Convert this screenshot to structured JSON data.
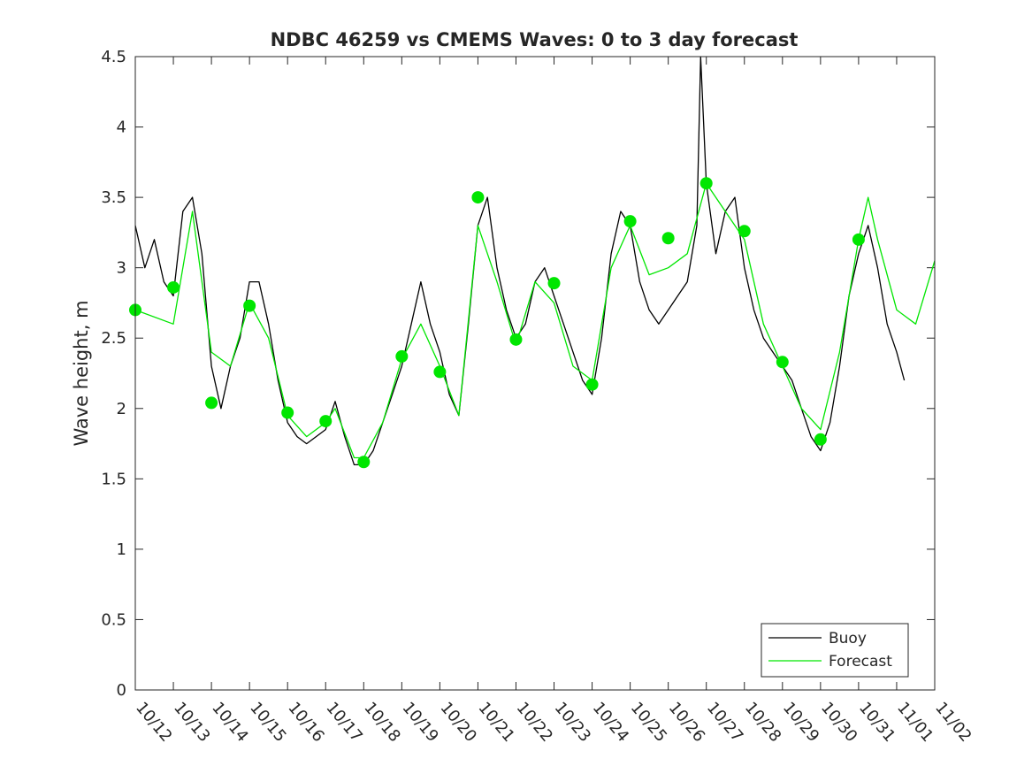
{
  "chart_data": {
    "type": "line",
    "title": "NDBC 46259 vs CMEMS Waves: 0 to 3 day forecast",
    "xlabel": "",
    "ylabel": "Wave height, m",
    "xlim": [
      0,
      21
    ],
    "ylim": [
      0,
      4.5
    ],
    "grid": false,
    "legend_location": "bottom-right",
    "x_tick_labels": [
      "10/12",
      "10/13",
      "10/14",
      "10/15",
      "10/16",
      "10/17",
      "10/18",
      "10/19",
      "10/20",
      "10/21",
      "10/22",
      "10/23",
      "10/24",
      "10/25",
      "10/26",
      "10/27",
      "10/28",
      "10/29",
      "10/30",
      "10/31",
      "11/01",
      "11/02"
    ],
    "y_ticks": [
      0,
      0.5,
      1,
      1.5,
      2,
      2.5,
      3,
      3.5,
      4,
      4.5
    ],
    "y_tick_labels": [
      "0",
      "0.5",
      "1",
      "1.5",
      "2",
      "2.5",
      "3",
      "3.5",
      "4",
      "4.5"
    ],
    "legend": [
      {
        "label": "Buoy",
        "color": "#000000"
      },
      {
        "label": "Forecast",
        "color": "#00e600"
      }
    ],
    "colors": {
      "buoy": "#000000",
      "forecast": "#00e600",
      "marker": "#00e600"
    },
    "series": [
      {
        "name": "Buoy",
        "points": [
          [
            0,
            3.3
          ],
          [
            0.25,
            3.0
          ],
          [
            0.5,
            3.2
          ],
          [
            0.75,
            2.9
          ],
          [
            1.0,
            2.8
          ],
          [
            1.25,
            3.4
          ],
          [
            1.5,
            3.5
          ],
          [
            1.75,
            3.1
          ],
          [
            2.0,
            2.3
          ],
          [
            2.25,
            2.0
          ],
          [
            2.5,
            2.3
          ],
          [
            2.75,
            2.5
          ],
          [
            3.0,
            2.9
          ],
          [
            3.25,
            2.9
          ],
          [
            3.5,
            2.6
          ],
          [
            3.75,
            2.2
          ],
          [
            4.0,
            1.9
          ],
          [
            4.25,
            1.8
          ],
          [
            4.5,
            1.75
          ],
          [
            4.75,
            1.8
          ],
          [
            5.0,
            1.85
          ],
          [
            5.25,
            2.05
          ],
          [
            5.5,
            1.8
          ],
          [
            5.75,
            1.6
          ],
          [
            6.0,
            1.6
          ],
          [
            6.25,
            1.7
          ],
          [
            6.5,
            1.9
          ],
          [
            6.75,
            2.1
          ],
          [
            7.0,
            2.3
          ],
          [
            7.25,
            2.6
          ],
          [
            7.5,
            2.9
          ],
          [
            7.75,
            2.6
          ],
          [
            8.0,
            2.4
          ],
          [
            8.25,
            2.1
          ],
          [
            8.5,
            1.95
          ],
          [
            8.75,
            2.6
          ],
          [
            9.0,
            3.3
          ],
          [
            9.25,
            3.5
          ],
          [
            9.5,
            3.0
          ],
          [
            9.75,
            2.7
          ],
          [
            10.0,
            2.5
          ],
          [
            10.25,
            2.6
          ],
          [
            10.5,
            2.9
          ],
          [
            10.75,
            3.0
          ],
          [
            11.0,
            2.8
          ],
          [
            11.25,
            2.6
          ],
          [
            11.5,
            2.4
          ],
          [
            11.75,
            2.2
          ],
          [
            12.0,
            2.1
          ],
          [
            12.25,
            2.5
          ],
          [
            12.5,
            3.1
          ],
          [
            12.75,
            3.4
          ],
          [
            13.0,
            3.3
          ],
          [
            13.25,
            2.9
          ],
          [
            13.5,
            2.7
          ],
          [
            13.75,
            2.6
          ],
          [
            14.0,
            2.7
          ],
          [
            14.25,
            2.8
          ],
          [
            14.5,
            2.9
          ],
          [
            14.75,
            3.3
          ],
          [
            14.85,
            4.5
          ],
          [
            15.0,
            3.6
          ],
          [
            15.25,
            3.1
          ],
          [
            15.5,
            3.4
          ],
          [
            15.75,
            3.5
          ],
          [
            16.0,
            3.0
          ],
          [
            16.25,
            2.7
          ],
          [
            16.5,
            2.5
          ],
          [
            16.75,
            2.4
          ],
          [
            17.0,
            2.3
          ],
          [
            17.25,
            2.2
          ],
          [
            17.5,
            2.0
          ],
          [
            17.75,
            1.8
          ],
          [
            18.0,
            1.7
          ],
          [
            18.25,
            1.9
          ],
          [
            18.5,
            2.3
          ],
          [
            18.75,
            2.8
          ],
          [
            19.0,
            3.1
          ],
          [
            19.25,
            3.3
          ],
          [
            19.5,
            3.0
          ],
          [
            19.75,
            2.6
          ],
          [
            20.0,
            2.4
          ],
          [
            20.2,
            2.2
          ]
        ]
      },
      {
        "name": "Forecast",
        "points": [
          [
            0,
            2.7
          ],
          [
            1.0,
            2.6
          ],
          [
            1.5,
            3.4
          ],
          [
            2.0,
            2.4
          ],
          [
            2.5,
            2.3
          ],
          [
            3.0,
            2.75
          ],
          [
            3.5,
            2.5
          ],
          [
            4.0,
            1.95
          ],
          [
            4.5,
            1.8
          ],
          [
            5.0,
            1.9
          ],
          [
            5.25,
            2.0
          ],
          [
            5.75,
            1.65
          ],
          [
            6.0,
            1.65
          ],
          [
            6.5,
            1.9
          ],
          [
            7.0,
            2.35
          ],
          [
            7.5,
            2.6
          ],
          [
            8.0,
            2.3
          ],
          [
            8.5,
            1.95
          ],
          [
            9.0,
            3.3
          ],
          [
            9.5,
            2.9
          ],
          [
            10.0,
            2.45
          ],
          [
            10.5,
            2.9
          ],
          [
            11.0,
            2.75
          ],
          [
            11.5,
            2.3
          ],
          [
            12.0,
            2.2
          ],
          [
            12.5,
            3.0
          ],
          [
            13.0,
            3.3
          ],
          [
            13.5,
            2.95
          ],
          [
            14.0,
            3.0
          ],
          [
            14.5,
            3.1
          ],
          [
            15.0,
            3.6
          ],
          [
            15.5,
            3.4
          ],
          [
            16.0,
            3.2
          ],
          [
            16.5,
            2.6
          ],
          [
            17.0,
            2.3
          ],
          [
            17.5,
            2.0
          ],
          [
            18.0,
            1.85
          ],
          [
            18.5,
            2.4
          ],
          [
            19.0,
            3.2
          ],
          [
            19.25,
            3.5
          ],
          [
            19.5,
            3.2
          ],
          [
            20.0,
            2.7
          ],
          [
            20.5,
            2.6
          ],
          [
            21.0,
            3.05
          ]
        ]
      },
      {
        "name": "Forecast analysis markers",
        "points": [
          [
            0,
            2.7
          ],
          [
            1,
            2.86
          ],
          [
            2,
            2.04
          ],
          [
            3,
            2.73
          ],
          [
            4,
            1.97
          ],
          [
            5,
            1.91
          ],
          [
            6,
            1.62
          ],
          [
            7,
            2.37
          ],
          [
            8,
            2.26
          ],
          [
            9,
            3.5
          ],
          [
            10,
            2.49
          ],
          [
            11,
            2.89
          ],
          [
            12,
            2.17
          ],
          [
            13,
            3.33
          ],
          [
            14,
            3.21
          ],
          [
            15,
            3.6
          ],
          [
            16,
            3.26
          ],
          [
            17,
            2.33
          ],
          [
            18,
            1.78
          ],
          [
            19,
            3.2
          ]
        ]
      }
    ]
  }
}
